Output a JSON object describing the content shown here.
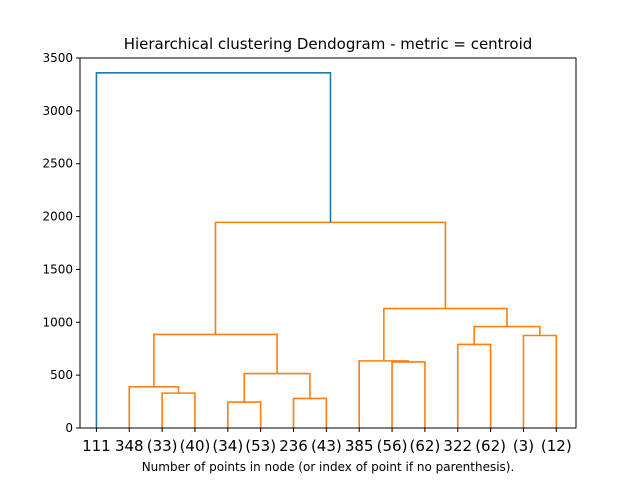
{
  "chart_data": {
    "type": "dendrogram",
    "title": "Hierarchical clustering Dendogram - metric = centroid",
    "xlabel": "Number of points in node (or index of point if no parenthesis).",
    "ylabel": "",
    "ylim": [
      0,
      3500
    ],
    "yticks": [
      0,
      500,
      1000,
      1500,
      2000,
      2500,
      3000,
      3500
    ],
    "ytick_labels": [
      "0",
      "500",
      "1000",
      "1500",
      "2000",
      "2500",
      "3000",
      "3500"
    ],
    "leaves": [
      "111",
      "348",
      "(33)",
      "(40)",
      "(34)",
      "(53)",
      "236",
      "(43)",
      "385",
      "(56)",
      "(62)",
      "322",
      "(62)",
      "(3)",
      "(12)"
    ],
    "colors": {
      "above_threshold": "#1f77b4",
      "cluster": "#ff7f0e",
      "axes": "#000000"
    },
    "merges": [
      {
        "left": "leaf:2",
        "right": "leaf:3",
        "height": 330,
        "color": "cluster"
      },
      {
        "left": "leaf:1",
        "right": "node:0",
        "height": 390,
        "color": "cluster"
      },
      {
        "left": "leaf:4",
        "right": "leaf:5",
        "height": 245,
        "color": "cluster"
      },
      {
        "left": "leaf:6",
        "right": "leaf:7",
        "height": 280,
        "color": "cluster"
      },
      {
        "left": "node:2",
        "right": "node:3",
        "height": 515,
        "color": "cluster"
      },
      {
        "left": "node:1",
        "right": "node:4",
        "height": 885,
        "color": "cluster"
      },
      {
        "left": "leaf:9",
        "right": "leaf:10",
        "height": 625,
        "color": "cluster"
      },
      {
        "left": "leaf:8",
        "right": "node:6",
        "height": 635,
        "color": "cluster"
      },
      {
        "left": "leaf:11",
        "right": "leaf:12",
        "height": 790,
        "color": "cluster"
      },
      {
        "left": "leaf:13",
        "right": "leaf:14",
        "height": 875,
        "color": "cluster"
      },
      {
        "left": "node:8",
        "right": "node:9",
        "height": 960,
        "color": "cluster"
      },
      {
        "left": "node:7",
        "right": "node:10",
        "height": 1130,
        "color": "cluster"
      },
      {
        "left": "node:5",
        "right": "node:11",
        "height": 1945,
        "color": "cluster"
      },
      {
        "left": "leaf:0",
        "right": "node:12",
        "height": 3360,
        "color": "above_threshold"
      }
    ]
  }
}
